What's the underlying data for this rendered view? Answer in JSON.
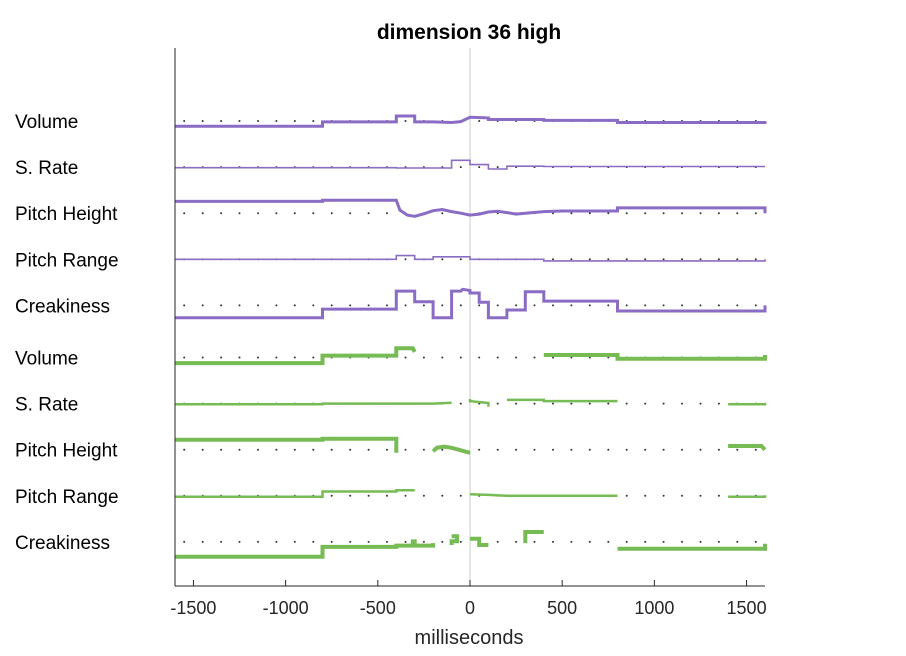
{
  "chart_data": {
    "type": "line",
    "title": "dimension 36 high",
    "xlabel": "milliseconds",
    "ylabel": "",
    "xlim": [
      -1600,
      1600
    ],
    "xticks": [
      -1500,
      -1000,
      -500,
      0,
      500,
      1000,
      1500
    ],
    "tick_labels": [
      "-1500",
      "-1000",
      "-500",
      "0",
      "500",
      "1000",
      "1500"
    ],
    "zero_line": 0,
    "baseline_dot_spacing_ms": 100,
    "colors": {
      "purple": "#8a6cc4",
      "green": "#77bb55",
      "axis": "#262626",
      "zero": "#cccccc",
      "dots": "#333333"
    },
    "rows": [
      {
        "label": "Volume",
        "color": "#8a6cc4",
        "weight": 3,
        "points": [
          [
            -1600,
            -0.17
          ],
          [
            -800,
            -0.17
          ],
          [
            -800,
            -0.03
          ],
          [
            -400,
            -0.03
          ],
          [
            -400,
            0.16
          ],
          [
            -300,
            0.16
          ],
          [
            -300,
            -0.03
          ],
          [
            -200,
            -0.03
          ],
          [
            -100,
            -0.05
          ],
          [
            -50,
            -0.02
          ],
          [
            0,
            0.12
          ],
          [
            100,
            0.1
          ],
          [
            100,
            0.05
          ],
          [
            400,
            0.05
          ],
          [
            400,
            0.02
          ],
          [
            800,
            0.02
          ],
          [
            800,
            -0.05
          ],
          [
            1600,
            -0.05
          ],
          [
            1600,
            0
          ]
        ]
      },
      {
        "label": "S. Rate",
        "color": "#8a6cc4",
        "weight": 1.6,
        "points": [
          [
            -1600,
            -0.02
          ],
          [
            -400,
            -0.02
          ],
          [
            -400,
            -0.03
          ],
          [
            -100,
            -0.03
          ],
          [
            -100,
            0.22
          ],
          [
            0,
            0.22
          ],
          [
            0,
            0.08
          ],
          [
            100,
            0.08
          ],
          [
            100,
            -0.06
          ],
          [
            200,
            -0.06
          ],
          [
            200,
            0.03
          ],
          [
            400,
            0.03
          ],
          [
            400,
            0.02
          ],
          [
            1600,
            0.02
          ]
        ]
      },
      {
        "label": "Pitch Height",
        "color": "#8a6cc4",
        "weight": 3,
        "points": [
          [
            -1600,
            0.38
          ],
          [
            -800,
            0.38
          ],
          [
            -800,
            0.42
          ],
          [
            -400,
            0.42
          ],
          [
            -380,
            0.1
          ],
          [
            -340,
            -0.06
          ],
          [
            -300,
            -0.1
          ],
          [
            -250,
            -0.02
          ],
          [
            -200,
            0.08
          ],
          [
            -150,
            0.12
          ],
          [
            -100,
            0.05
          ],
          [
            -50,
            0.0
          ],
          [
            0,
            -0.06
          ],
          [
            50,
            -0.03
          ],
          [
            100,
            0.04
          ],
          [
            150,
            0.06
          ],
          [
            200,
            0.02
          ],
          [
            250,
            -0.03
          ],
          [
            300,
            0.0
          ],
          [
            400,
            0.05
          ],
          [
            500,
            0.07
          ],
          [
            800,
            0.07
          ],
          [
            800,
            0.17
          ],
          [
            1600,
            0.17
          ],
          [
            1600,
            0.0
          ]
        ]
      },
      {
        "label": "Pitch Range",
        "color": "#8a6cc4",
        "weight": 1.6,
        "points": [
          [
            -1600,
            0
          ],
          [
            -400,
            0
          ],
          [
            -400,
            0.12
          ],
          [
            -300,
            0.12
          ],
          [
            -300,
            0
          ],
          [
            -200,
            0
          ],
          [
            -200,
            0.08
          ],
          [
            0,
            0.08
          ],
          [
            0,
            0
          ],
          [
            400,
            0
          ],
          [
            400,
            -0.05
          ],
          [
            1600,
            -0.05
          ],
          [
            1600,
            0
          ]
        ]
      },
      {
        "label": "Creakiness",
        "color": "#8a6cc4",
        "weight": 3,
        "points": [
          [
            -1600,
            -0.4
          ],
          [
            -800,
            -0.4
          ],
          [
            -800,
            -0.12
          ],
          [
            -400,
            -0.12
          ],
          [
            -400,
            0.46
          ],
          [
            -300,
            0.46
          ],
          [
            -300,
            0.12
          ],
          [
            -200,
            0.12
          ],
          [
            -200,
            -0.4
          ],
          [
            -100,
            -0.4
          ],
          [
            -100,
            0.46
          ],
          [
            -50,
            0.46
          ],
          [
            -40,
            0.52
          ],
          [
            0,
            0.48
          ],
          [
            0,
            0.4
          ],
          [
            50,
            0.4
          ],
          [
            50,
            0.1
          ],
          [
            100,
            0.1
          ],
          [
            100,
            -0.4
          ],
          [
            200,
            -0.4
          ],
          [
            200,
            -0.15
          ],
          [
            300,
            -0.15
          ],
          [
            300,
            0.44
          ],
          [
            400,
            0.44
          ],
          [
            400,
            0.14
          ],
          [
            800,
            0.14
          ],
          [
            800,
            -0.18
          ],
          [
            1600,
            -0.18
          ],
          [
            1600,
            0
          ]
        ]
      },
      {
        "label": "Volume",
        "color": "#77bb55",
        "weight": 4,
        "points": [
          [
            -1600,
            -0.18
          ],
          [
            -800,
            -0.18
          ],
          [
            -800,
            0.06
          ],
          [
            -400,
            0.06
          ],
          [
            -400,
            0.3
          ],
          [
            -310,
            0.3
          ],
          [
            -300,
            0.18
          ],
          null,
          [
            400,
            0.08
          ],
          [
            800,
            0.08
          ],
          [
            800,
            -0.04
          ],
          [
            1600,
            -0.04
          ],
          [
            1600,
            0.08
          ]
        ]
      },
      {
        "label": "S. Rate",
        "color": "#77bb55",
        "weight": 2.5,
        "points": [
          [
            -1600,
            -0.02
          ],
          [
            -800,
            -0.02
          ],
          [
            -800,
            0.0
          ],
          [
            -400,
            0.0
          ],
          [
            -200,
            0.0
          ],
          [
            -100,
            0.03
          ],
          null,
          [
            0,
            0.15
          ],
          [
            0,
            0.08
          ],
          [
            100,
            0.02
          ],
          [
            100,
            -0.1
          ],
          null,
          [
            200,
            0.12
          ],
          [
            400,
            0.12
          ],
          [
            400,
            0.08
          ],
          [
            800,
            0.08
          ],
          null,
          [
            1400,
            -0.02
          ],
          [
            1600,
            -0.02
          ],
          [
            1600,
            0.03
          ]
        ]
      },
      {
        "label": "Pitch Height",
        "color": "#77bb55",
        "weight": 4,
        "points": [
          [
            -1600,
            0.32
          ],
          [
            -800,
            0.32
          ],
          [
            -800,
            0.35
          ],
          [
            -400,
            0.35
          ],
          [
            -400,
            -0.1
          ],
          null,
          [
            -200,
            -0.05
          ],
          [
            -180,
            0.06
          ],
          [
            -140,
            0.1
          ],
          [
            -100,
            0.06
          ],
          [
            -50,
            -0.02
          ],
          [
            0,
            -0.1
          ],
          null,
          [
            1400,
            0.12
          ],
          [
            1580,
            0.12
          ],
          [
            1600,
            0.0
          ]
        ]
      },
      {
        "label": "Pitch Range",
        "color": "#77bb55",
        "weight": 2.5,
        "points": [
          [
            -1600,
            -0.03
          ],
          [
            -800,
            -0.03
          ],
          [
            -800,
            0.14
          ],
          [
            -400,
            0.14
          ],
          [
            -400,
            0.18
          ],
          [
            -300,
            0.18
          ],
          null,
          [
            0,
            0.05
          ],
          [
            100,
            0.03
          ],
          [
            200,
            0.0
          ],
          [
            400,
            0.0
          ],
          [
            800,
            0.0
          ],
          null,
          [
            1400,
            -0.03
          ],
          [
            1600,
            -0.03
          ],
          [
            1600,
            0.02
          ]
        ]
      },
      {
        "label": "Creakiness",
        "color": "#77bb55",
        "weight": 4,
        "points": [
          [
            -1600,
            -0.48
          ],
          [
            -800,
            -0.48
          ],
          [
            -800,
            -0.16
          ],
          [
            -400,
            -0.16
          ],
          [
            -400,
            -0.12
          ],
          [
            -310,
            -0.12
          ],
          [
            -310,
            0.08
          ],
          null,
          [
            -300,
            0.08
          ],
          [
            -300,
            -0.12
          ],
          [
            -200,
            -0.12
          ],
          [
            -200,
            -0.04
          ],
          null,
          [
            -100,
            0.18
          ],
          [
            -70,
            0.18
          ],
          [
            -70,
            0.02
          ],
          [
            -100,
            0.02
          ],
          [
            -100,
            -0.1
          ],
          null,
          [
            0,
            0.1
          ],
          [
            50,
            0.1
          ],
          [
            50,
            -0.1
          ],
          [
            100,
            -0.1
          ],
          null,
          [
            300,
            -0.04
          ],
          [
            300,
            0.32
          ],
          [
            400,
            0.32
          ],
          null,
          [
            800,
            -0.22
          ],
          [
            1600,
            -0.22
          ],
          [
            1600,
            -0.06
          ]
        ]
      }
    ]
  }
}
